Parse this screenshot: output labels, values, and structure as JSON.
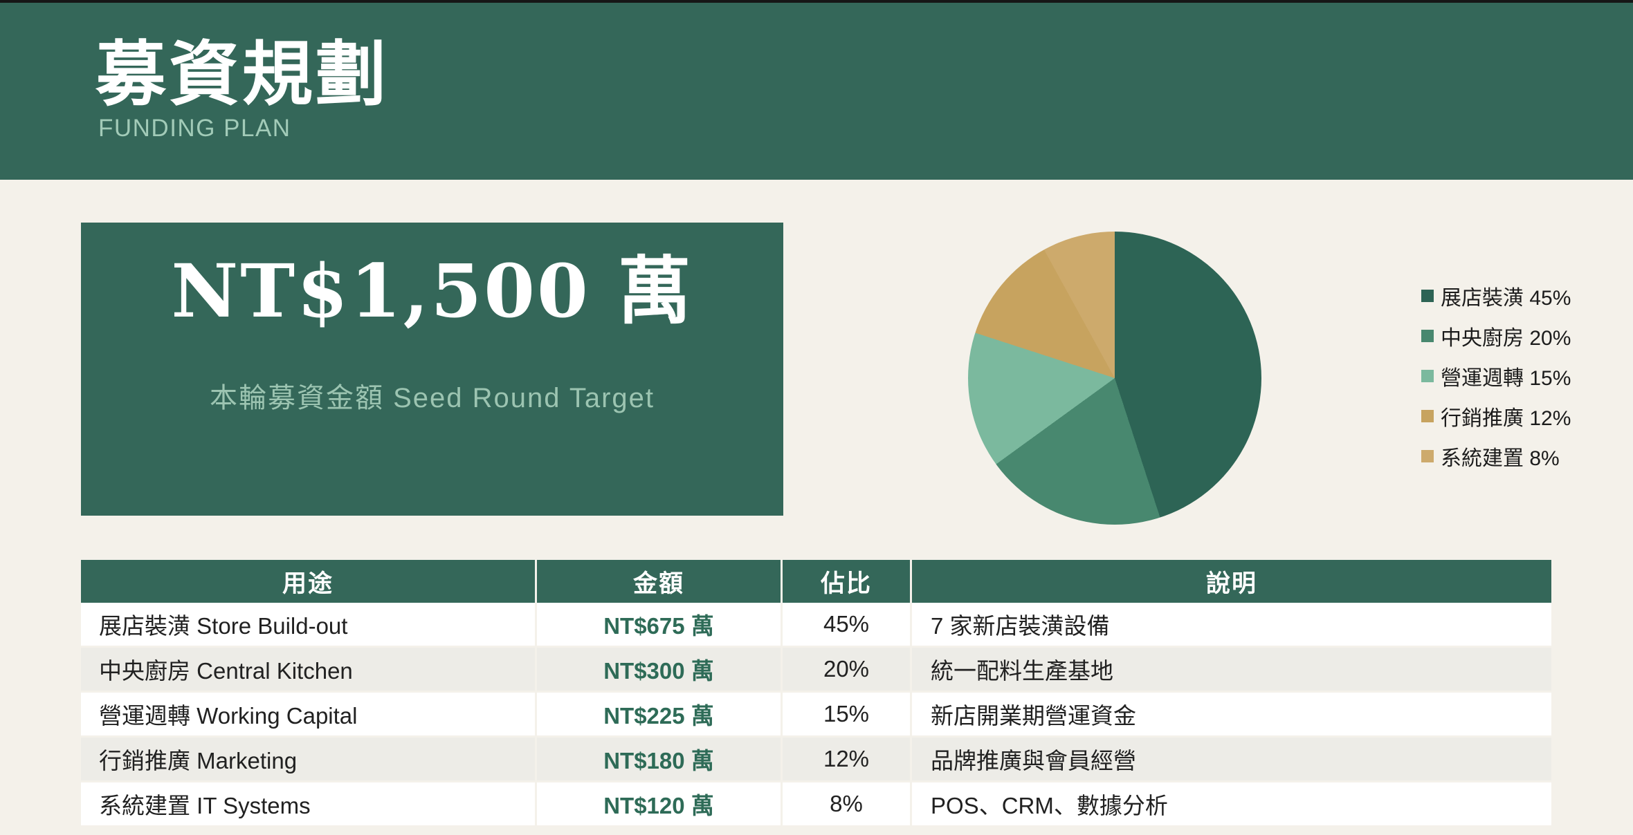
{
  "page": {
    "background": "#F4F1EA",
    "top_bar_color": "#161616"
  },
  "header": {
    "background": "#346759",
    "title": "募資規劃",
    "subtitle": "FUNDING PLAN",
    "subtitle_color": "#A2CBB8"
  },
  "target_card": {
    "background": "#346759",
    "amount": "NT$1,500 萬",
    "caption": "本輪募資金額  Seed Round Target",
    "caption_color": "#9CC4B1"
  },
  "chart_data": {
    "type": "pie",
    "title": "",
    "legend_position": "right",
    "start_angle_deg": 0,
    "direction": "clockwise",
    "slices": [
      {
        "label": "展店裝潢",
        "value_pct": 45,
        "color": "#2D6455"
      },
      {
        "label": "中央廚房",
        "value_pct": 20,
        "color": "#48886F"
      },
      {
        "label": "營運週轉",
        "value_pct": 15,
        "color": "#7BB99E"
      },
      {
        "label": "行銷推廣",
        "value_pct": 12,
        "color": "#C7A35F"
      },
      {
        "label": "系統建置",
        "value_pct": 8,
        "color": "#CDAA6C"
      }
    ]
  },
  "table": {
    "header_bg": "#346759",
    "row_bg": "#FFFFFF",
    "row_alt_bg": "#EDECE7",
    "amount_color": "#2E6B57",
    "columns": [
      "用途",
      "金額",
      "佔比",
      "說明"
    ],
    "rows": [
      {
        "use": "展店裝潢 Store Build-out",
        "amount": "NT$675 萬",
        "pct": "45%",
        "note": "7 家新店裝潢設備"
      },
      {
        "use": "中央廚房 Central Kitchen",
        "amount": "NT$300 萬",
        "pct": "20%",
        "note": "統一配料生產基地"
      },
      {
        "use": "營運週轉 Working Capital",
        "amount": "NT$225 萬",
        "pct": "15%",
        "note": "新店開業期營運資金"
      },
      {
        "use": "行銷推廣 Marketing",
        "amount": "NT$180 萬",
        "pct": "12%",
        "note": "品牌推廣與會員經營"
      },
      {
        "use": "系統建置 IT Systems",
        "amount": "NT$120 萬",
        "pct": "8%",
        "note": "POS、CRM、數據分析"
      }
    ]
  }
}
